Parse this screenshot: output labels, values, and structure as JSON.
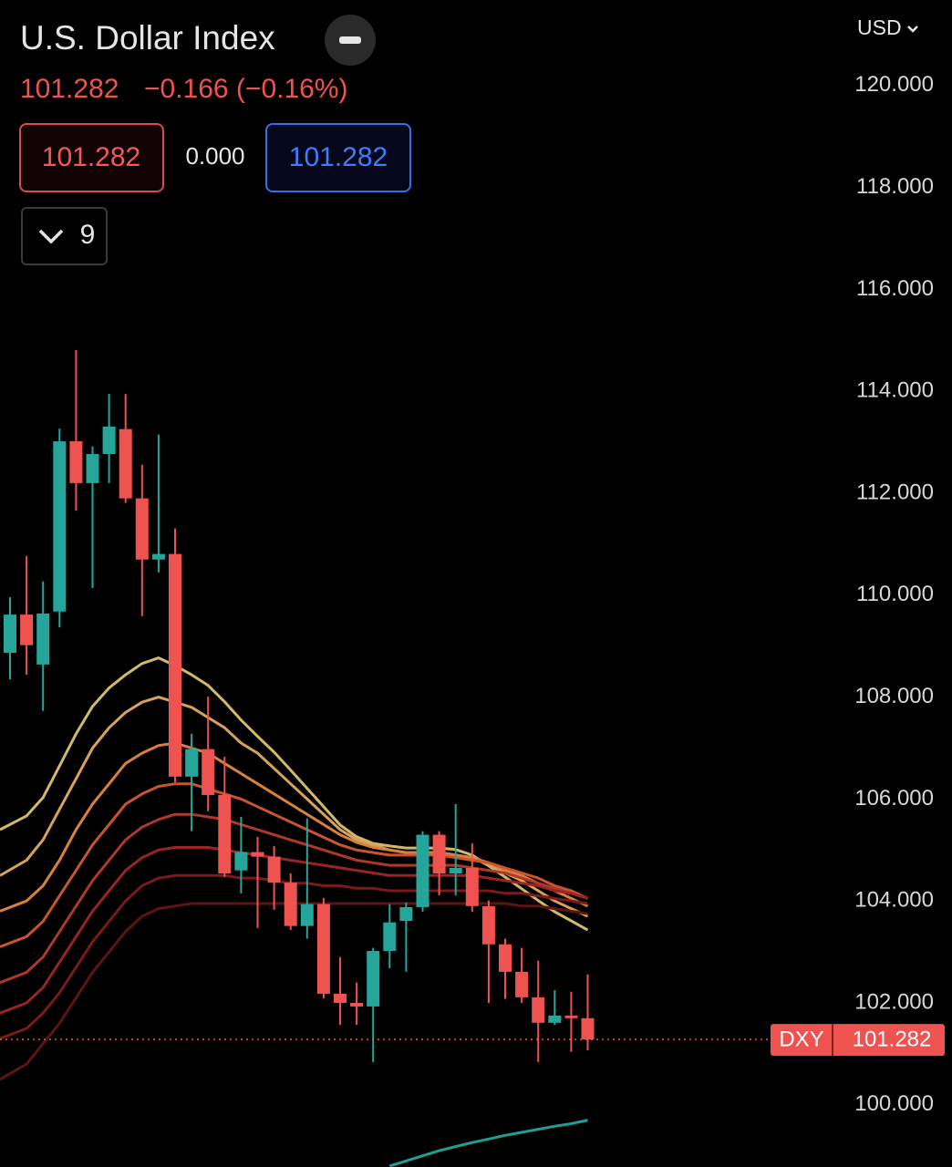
{
  "ui": {
    "title": "U.S. Dollar Index",
    "price": "101.282",
    "change": "−0.166 (−0.16%)",
    "sell": "101.282",
    "spread": "0.000",
    "buy": "101.282",
    "indicators": "9",
    "currency": "USD",
    "symbol": "DXY",
    "badge_price": "101.282"
  },
  "chart_data": {
    "type": "candlestick",
    "categories": [
      null,
      null,
      null,
      null,
      null,
      null,
      null,
      null,
      null,
      null,
      null,
      null,
      null,
      null,
      null,
      null,
      null,
      null,
      null,
      null,
      null,
      null,
      null,
      null,
      null,
      null,
      null,
      null,
      null,
      null,
      null,
      null,
      null,
      null,
      null,
      null
    ],
    "open": [
      108.87,
      109.62,
      108.64,
      109.68,
      113.02,
      112.2,
      112.77,
      113.26,
      111.9,
      110.7,
      110.81,
      106.44,
      106.98,
      106.08,
      104.6,
      104.96,
      104.87,
      104.36,
      103.51,
      103.94,
      102.18,
      102.0,
      101.93,
      103.02,
      103.61,
      103.88,
      105.3,
      104.54,
      104.65,
      103.9,
      103.15,
      102.61,
      102.11,
      101.61,
      101.75,
      101.7
    ],
    "high": [
      109.96,
      110.77,
      110.27,
      113.27,
      114.81,
      112.92,
      113.95,
      113.95,
      112.56,
      113.15,
      111.31,
      107.28,
      108.01,
      106.83,
      105.65,
      105.26,
      105.08,
      104.54,
      105.62,
      104.06,
      102.9,
      102.4,
      103.08,
      103.94,
      103.97,
      105.37,
      105.37,
      105.9,
      105.13,
      104.01,
      103.26,
      103.08,
      102.83,
      102.25,
      102.22,
      102.56
    ],
    "low": [
      108.35,
      108.44,
      107.73,
      109.37,
      111.66,
      110.14,
      112.2,
      111.81,
      109.59,
      110.45,
      106.33,
      105.37,
      105.76,
      104.47,
      104.15,
      103.47,
      103.83,
      103.43,
      103.26,
      102.09,
      101.57,
      101.57,
      100.84,
      102.68,
      102.61,
      103.79,
      104.11,
      104.11,
      103.79,
      102.0,
      102.08,
      102.0,
      100.84,
      101.57,
      101.04,
      101.07
    ],
    "close": [
      109.62,
      109.02,
      109.64,
      113.02,
      112.2,
      112.77,
      113.31,
      111.9,
      110.7,
      110.81,
      106.44,
      106.98,
      106.08,
      104.54,
      104.96,
      104.87,
      104.36,
      103.51,
      103.94,
      102.18,
      102.0,
      101.93,
      103.02,
      103.58,
      103.88,
      105.3,
      104.54,
      104.65,
      103.9,
      103.15,
      102.61,
      102.11,
      101.61,
      101.75,
      101.7,
      101.282
    ],
    "up_color": "#26a69a",
    "down_color": "#ef5350",
    "series": [
      {
        "color": "#d2b96a",
        "values": [
          105.4,
          105.67,
          106.03,
          106.65,
          107.28,
          107.82,
          108.18,
          108.44,
          108.66,
          108.77,
          108.62,
          108.44,
          108.23,
          107.91,
          107.55,
          107.23,
          106.92,
          106.57,
          106.21,
          105.85,
          105.49,
          105.26,
          105.13,
          105.08,
          105.04,
          105.04,
          105.04,
          105.01,
          104.9,
          104.69,
          104.47,
          104.24,
          104.01,
          103.79,
          103.61,
          103.43
        ]
      },
      {
        "color": "#d8a25b",
        "values": [
          104.5,
          104.8,
          105.2,
          105.8,
          106.4,
          107.0,
          107.4,
          107.7,
          107.9,
          108.0,
          107.9,
          107.8,
          107.6,
          107.4,
          107.1,
          106.9,
          106.6,
          106.3,
          106.0,
          105.7,
          105.4,
          105.2,
          105.1,
          105.0,
          104.95,
          104.95,
          104.95,
          104.9,
          104.85,
          104.7,
          104.55,
          104.4,
          104.2,
          104.0,
          103.85,
          103.7
        ]
      },
      {
        "color": "#d8813f",
        "values": [
          103.8,
          104.0,
          104.3,
          104.8,
          105.4,
          105.9,
          106.3,
          106.7,
          106.9,
          107.05,
          107.1,
          107.0,
          106.9,
          106.7,
          106.5,
          106.3,
          106.1,
          105.9,
          105.7,
          105.5,
          105.3,
          105.15,
          105.05,
          105.0,
          104.95,
          104.95,
          104.95,
          104.9,
          104.85,
          104.75,
          104.6,
          104.5,
          104.35,
          104.2,
          104.05,
          103.9
        ]
      },
      {
        "color": "#c9552e",
        "values": [
          103.1,
          103.3,
          103.6,
          104.1,
          104.6,
          105.1,
          105.5,
          105.9,
          106.1,
          106.25,
          106.3,
          106.3,
          106.2,
          106.1,
          106.0,
          105.85,
          105.7,
          105.55,
          105.4,
          105.25,
          105.1,
          105.0,
          104.95,
          104.9,
          104.9,
          104.9,
          104.9,
          104.85,
          104.8,
          104.75,
          104.65,
          104.55,
          104.45,
          104.3,
          104.2,
          104.05
        ]
      },
      {
        "color": "#b0382a",
        "values": [
          102.4,
          102.6,
          102.9,
          103.4,
          103.9,
          104.4,
          104.8,
          105.2,
          105.45,
          105.6,
          105.7,
          105.7,
          105.65,
          105.6,
          105.5,
          105.4,
          105.3,
          105.2,
          105.1,
          105.0,
          104.9,
          104.8,
          104.75,
          104.7,
          104.7,
          104.7,
          104.7,
          104.7,
          104.65,
          104.6,
          104.55,
          104.45,
          104.35,
          104.25,
          104.15,
          104.05
        ]
      },
      {
        "color": "#9a2424",
        "values": [
          101.8,
          102.0,
          102.3,
          102.8,
          103.3,
          103.8,
          104.2,
          104.6,
          104.85,
          105.0,
          105.05,
          105.05,
          105.05,
          105.0,
          104.95,
          104.9,
          104.85,
          104.8,
          104.75,
          104.7,
          104.65,
          104.6,
          104.55,
          104.5,
          104.5,
          104.5,
          104.5,
          104.5,
          104.5,
          104.45,
          104.4,
          104.35,
          104.3,
          104.2,
          104.15,
          104.05
        ]
      },
      {
        "color": "#7a1a1a",
        "values": [
          101.3,
          101.5,
          101.8,
          102.2,
          102.7,
          103.2,
          103.6,
          104.0,
          104.3,
          104.45,
          104.5,
          104.5,
          104.5,
          104.5,
          104.45,
          104.45,
          104.4,
          104.35,
          104.35,
          104.3,
          104.3,
          104.25,
          104.25,
          104.2,
          104.2,
          104.2,
          104.2,
          104.2,
          104.2,
          104.2,
          104.15,
          104.15,
          104.1,
          104.05,
          104.0,
          103.95
        ]
      },
      {
        "color": "#5e1414",
        "values": [
          100.5,
          100.8,
          101.2,
          101.6,
          102.1,
          102.6,
          103.0,
          103.4,
          103.7,
          103.85,
          103.9,
          103.95,
          103.95,
          103.95,
          103.95,
          103.95,
          103.95,
          103.95,
          103.95,
          103.95,
          103.95,
          103.95,
          103.95,
          103.95,
          103.95,
          103.95,
          103.95,
          103.95,
          103.95,
          103.95,
          103.95,
          103.9,
          103.9,
          103.85,
          103.8,
          103.75
        ]
      },
      {
        "color": "#1f9e96",
        "values": [
          null,
          null,
          null,
          null,
          null,
          null,
          null,
          null,
          null,
          null,
          null,
          null,
          null,
          null,
          null,
          null,
          null,
          null,
          null,
          null,
          null,
          null,
          null,
          98.8,
          98.9,
          99.0,
          99.1,
          99.18,
          99.26,
          99.33,
          99.4,
          99.46,
          99.52,
          99.58,
          99.63,
          99.7
        ]
      }
    ],
    "ylim": [
      98.78,
      121.68
    ],
    "yticks": [
      {
        "value": 100,
        "label": "100.000"
      },
      {
        "value": 102,
        "label": "102.000"
      },
      {
        "value": 104,
        "label": "104.000"
      },
      {
        "value": 106,
        "label": "106.000"
      },
      {
        "value": 108,
        "label": "108.000"
      },
      {
        "value": 110,
        "label": "110.000"
      },
      {
        "value": 112,
        "label": "112.000"
      },
      {
        "value": 114,
        "label": "114.000"
      },
      {
        "value": 116,
        "label": "116.000"
      },
      {
        "value": 118,
        "label": "118.000"
      },
      {
        "value": 120,
        "label": "120.000"
      }
    ],
    "last_line_color": "#ef5350"
  }
}
